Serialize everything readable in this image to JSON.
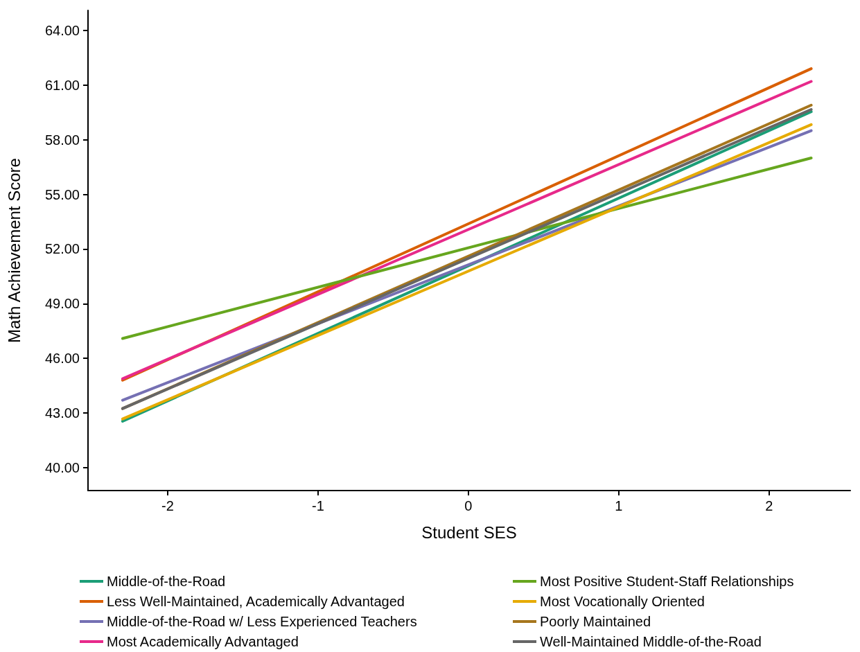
{
  "chart_data": {
    "type": "line",
    "xlabel": "Student SES",
    "ylabel": "Math Achievement Score",
    "x": [
      -2.3,
      2.28
    ],
    "xlim": [
      -2.53,
      2.54
    ],
    "xticks": [
      -2,
      -1,
      0,
      1,
      2
    ],
    "ylim": [
      38.74,
      65.1
    ],
    "yticks": [
      {
        "value": 40,
        "label": "40.00"
      },
      {
        "value": 43,
        "label": "43.00"
      },
      {
        "value": 46,
        "label": "46.00"
      },
      {
        "value": 49,
        "label": "49.00"
      },
      {
        "value": 52,
        "label": "52.00"
      },
      {
        "value": 55,
        "label": "55.00"
      },
      {
        "value": 58,
        "label": "58.00"
      },
      {
        "value": 61,
        "label": "61.00"
      },
      {
        "value": 64,
        "label": "64.00"
      }
    ],
    "grid": false,
    "legend": "bottom",
    "marker": "none",
    "line_style": "solid",
    "series": [
      {
        "name": "Middle-of-the-Road",
        "color": "#1b9e77",
        "values": [
          42.55,
          59.54
        ]
      },
      {
        "name": "Less Well-Maintained, Academically Advantaged",
        "color": "#d95f02",
        "values": [
          44.8,
          61.9
        ]
      },
      {
        "name": "Middle-of-the-Road w/ Less Experienced Teachers",
        "color": "#7570b3",
        "values": [
          43.7,
          58.5
        ]
      },
      {
        "name": "Most Academically Advantaged",
        "color": "#e7298a",
        "values": [
          44.88,
          61.2
        ]
      },
      {
        "name": "Most Positive Student-Staff Relationships",
        "color": "#66a61e",
        "values": [
          47.09,
          57.0
        ]
      },
      {
        "name": "Most Vocationally Oriented",
        "color": "#e6ab02",
        "values": [
          42.67,
          58.83
        ]
      },
      {
        "name": "Poorly Maintained",
        "color": "#a6761d",
        "values": [
          43.24,
          59.9
        ]
      },
      {
        "name": "Well-Maintained Middle-of-the-Road",
        "color": "#666666",
        "values": [
          43.24,
          59.66
        ]
      }
    ]
  }
}
